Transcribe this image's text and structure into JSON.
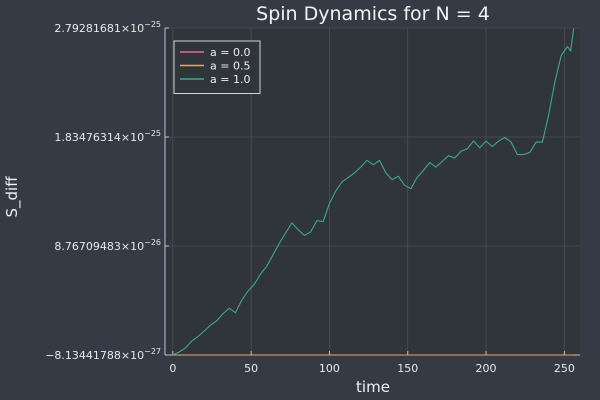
{
  "chart_data": {
    "type": "line",
    "title": "Spin Dynamics for N = 4",
    "xlabel": "time",
    "ylabel": "S_diff",
    "xlim": [
      -5,
      260
    ],
    "ylim": [
      -8.13441788e-27,
      2.79281681e-25
    ],
    "grid": true,
    "legend_position": "top-left",
    "x_ticks": [
      {
        "value": 0,
        "label": "0"
      },
      {
        "value": 50,
        "label": "50"
      },
      {
        "value": 100,
        "label": "100"
      },
      {
        "value": 150,
        "label": "150"
      },
      {
        "value": 200,
        "label": "200"
      },
      {
        "value": 250,
        "label": "250"
      }
    ],
    "y_ticks": [
      {
        "value": -8.13441788e-27,
        "mantissa": "−8.13441788×10",
        "exponent": "−27"
      },
      {
        "value": 8.76709483e-26,
        "mantissa": "8.76709483×10",
        "exponent": "−26"
      },
      {
        "value": 1.83476314e-25,
        "mantissa": "1.83476314×10",
        "exponent": "−25"
      },
      {
        "value": 2.79281681e-25,
        "mantissa": "2.79281681×10",
        "exponent": "−25"
      }
    ],
    "series": [
      {
        "name": "a = 0.0",
        "color": "#e26d7b",
        "x": [
          0,
          64,
          128,
          192,
          256
        ],
        "y": [
          -8.13441788e-27,
          -8.13441788e-27,
          -8.13441788e-27,
          -8.13441788e-27,
          -8.13441788e-27
        ]
      },
      {
        "name": "a = 0.5",
        "color": "#e6a85a",
        "x": [
          0,
          64,
          128,
          192,
          256
        ],
        "y": [
          -8.13441788e-27,
          -8.13441788e-27,
          -8.13441788e-27,
          -8.13441788e-27,
          -8.13441788e-27
        ]
      },
      {
        "name": "a = 1.0",
        "color": "#3fa88b",
        "x": [
          0,
          4,
          8,
          12,
          16,
          20,
          24,
          28,
          32,
          36,
          40,
          44,
          48,
          52,
          56,
          60,
          64,
          68,
          72,
          76,
          80,
          84,
          88,
          92,
          96,
          100,
          104,
          108,
          112,
          116,
          120,
          124,
          128,
          132,
          136,
          140,
          144,
          148,
          152,
          156,
          160,
          164,
          168,
          172,
          176,
          180,
          184,
          188,
          192,
          196,
          200,
          204,
          208,
          212,
          216,
          220,
          224,
          228,
          232,
          236,
          240,
          244,
          248,
          252,
          254,
          256
        ],
        "y": [
          -8.1e-27,
          -5.5e-27,
          -2e-27,
          4e-27,
          8e-27,
          1.3e-26,
          1.8e-26,
          2.2e-26,
          2.8e-26,
          3.3e-26,
          2.9e-26,
          4e-26,
          4.8e-26,
          5.4e-26,
          6.3e-26,
          7e-26,
          8e-26,
          9e-26,
          9.9e-26,
          1.08e-25,
          1.02e-25,
          9.7e-26,
          1e-25,
          1.1e-25,
          1.09e-25,
          1.25e-25,
          1.36e-25,
          1.44e-25,
          1.48e-25,
          1.52e-25,
          1.57e-25,
          1.63e-25,
          1.59e-25,
          1.63e-25,
          1.52e-25,
          1.46e-25,
          1.49e-25,
          1.41e-25,
          1.38e-25,
          1.48e-25,
          1.54e-25,
          1.61e-25,
          1.57e-25,
          1.62e-25,
          1.67e-25,
          1.65e-25,
          1.71e-25,
          1.73e-25,
          1.8e-25,
          1.74e-25,
          1.8e-25,
          1.75e-25,
          1.8e-25,
          1.83e-25,
          1.79e-25,
          1.68e-25,
          1.68e-25,
          1.7e-25,
          1.79e-25,
          1.79e-25,
          2.03e-25,
          2.32e-25,
          2.55e-25,
          2.63e-25,
          2.59e-25,
          2.79e-25
        ]
      }
    ]
  }
}
